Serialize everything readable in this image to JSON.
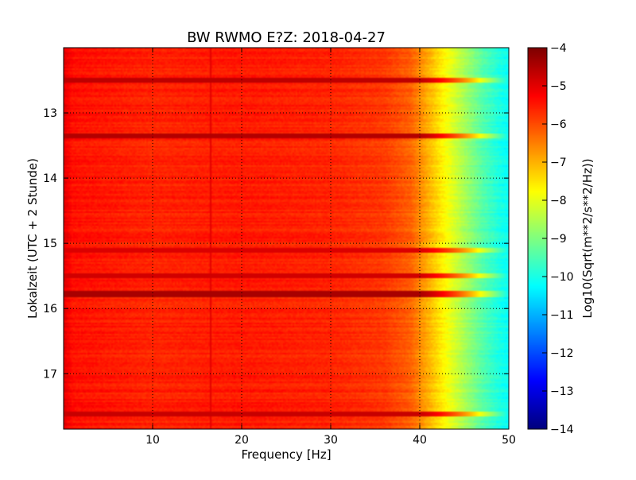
{
  "chart_data": {
    "type": "heatmap",
    "title": "BW RWMO E?Z: 2018-04-27",
    "xlabel": "Frequency [Hz]",
    "ylabel": "Lokalzeit (UTC + 2 Stunde)",
    "xlim": [
      0,
      50
    ],
    "ylim": [
      17.85,
      12.0
    ],
    "x_ticks": [
      10,
      20,
      30,
      40,
      50
    ],
    "y_ticks": [
      13,
      14,
      15,
      16,
      17
    ],
    "grid": true,
    "colormap": "jet",
    "colorbar": {
      "label": "Log10(Sqrt(m**2/s**2/Hz))",
      "range": [
        -14,
        -4
      ],
      "ticks": [
        -4,
        -5,
        -6,
        -7,
        -8,
        -9,
        -10,
        -11,
        -12,
        -13,
        -14
      ]
    },
    "base_profile": [
      {
        "freq": 0,
        "value": -5.0
      },
      {
        "freq": 1,
        "value": -5.4
      },
      {
        "freq": 10,
        "value": -5.6
      },
      {
        "freq": 20,
        "value": -5.5
      },
      {
        "freq": 30,
        "value": -5.6
      },
      {
        "freq": 36,
        "value": -5.8
      },
      {
        "freq": 39,
        "value": -6.2
      },
      {
        "freq": 41,
        "value": -7.0
      },
      {
        "freq": 43,
        "value": -7.8
      },
      {
        "freq": 45,
        "value": -8.6
      },
      {
        "freq": 47,
        "value": -9.4
      },
      {
        "freq": 49,
        "value": -10.0
      },
      {
        "freq": 50,
        "value": -10.2
      }
    ],
    "bands": [
      {
        "time": 12.5,
        "value": -4.6
      },
      {
        "time": 13.35,
        "value": -4.5
      },
      {
        "time": 15.1,
        "value": -4.9
      },
      {
        "time": 15.5,
        "value": -4.8
      },
      {
        "time": 15.78,
        "value": -4.4
      },
      {
        "time": 17.62,
        "value": -4.7
      }
    ],
    "lines": [
      {
        "freq": 16.5,
        "value": -5.0
      }
    ]
  }
}
